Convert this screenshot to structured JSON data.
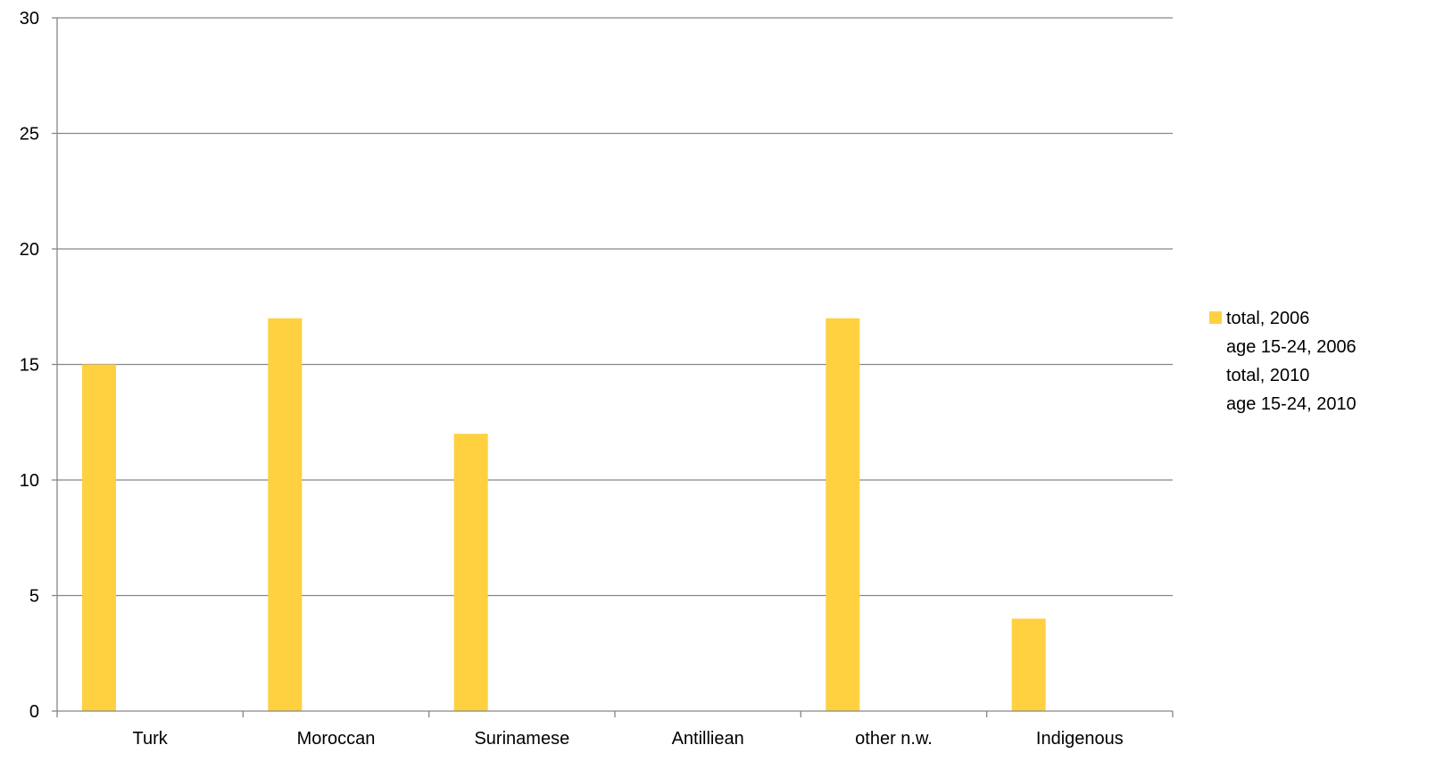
{
  "chart_data": {
    "type": "bar",
    "title": "",
    "xlabel": "",
    "ylabel": "",
    "ylim": [
      0,
      30
    ],
    "yticks": [
      0,
      5,
      10,
      15,
      20,
      25,
      30
    ],
    "grid": true,
    "legend_position": "right",
    "categories": [
      "Turk",
      "Moroccan",
      "Surinamese",
      "Antilliean",
      "other n.w.",
      "Indigenous"
    ],
    "series": [
      {
        "name": "total, 2006",
        "color": "#FFD040",
        "values": [
          15,
          17,
          12,
          0,
          17,
          4
        ]
      },
      {
        "name": "age 15-24, 2006",
        "color": "#FFD040",
        "values": [
          null,
          null,
          null,
          null,
          null,
          null
        ]
      },
      {
        "name": "total, 2010",
        "color": "#FFD040",
        "values": [
          null,
          null,
          null,
          null,
          null,
          null
        ]
      },
      {
        "name": "age 15-24, 2010",
        "color": "#FFD040",
        "values": [
          null,
          null,
          null,
          null,
          null,
          null
        ]
      }
    ],
    "colors": {
      "grid": "#868686",
      "axis": "#868686",
      "bar": "#FFD040"
    }
  }
}
